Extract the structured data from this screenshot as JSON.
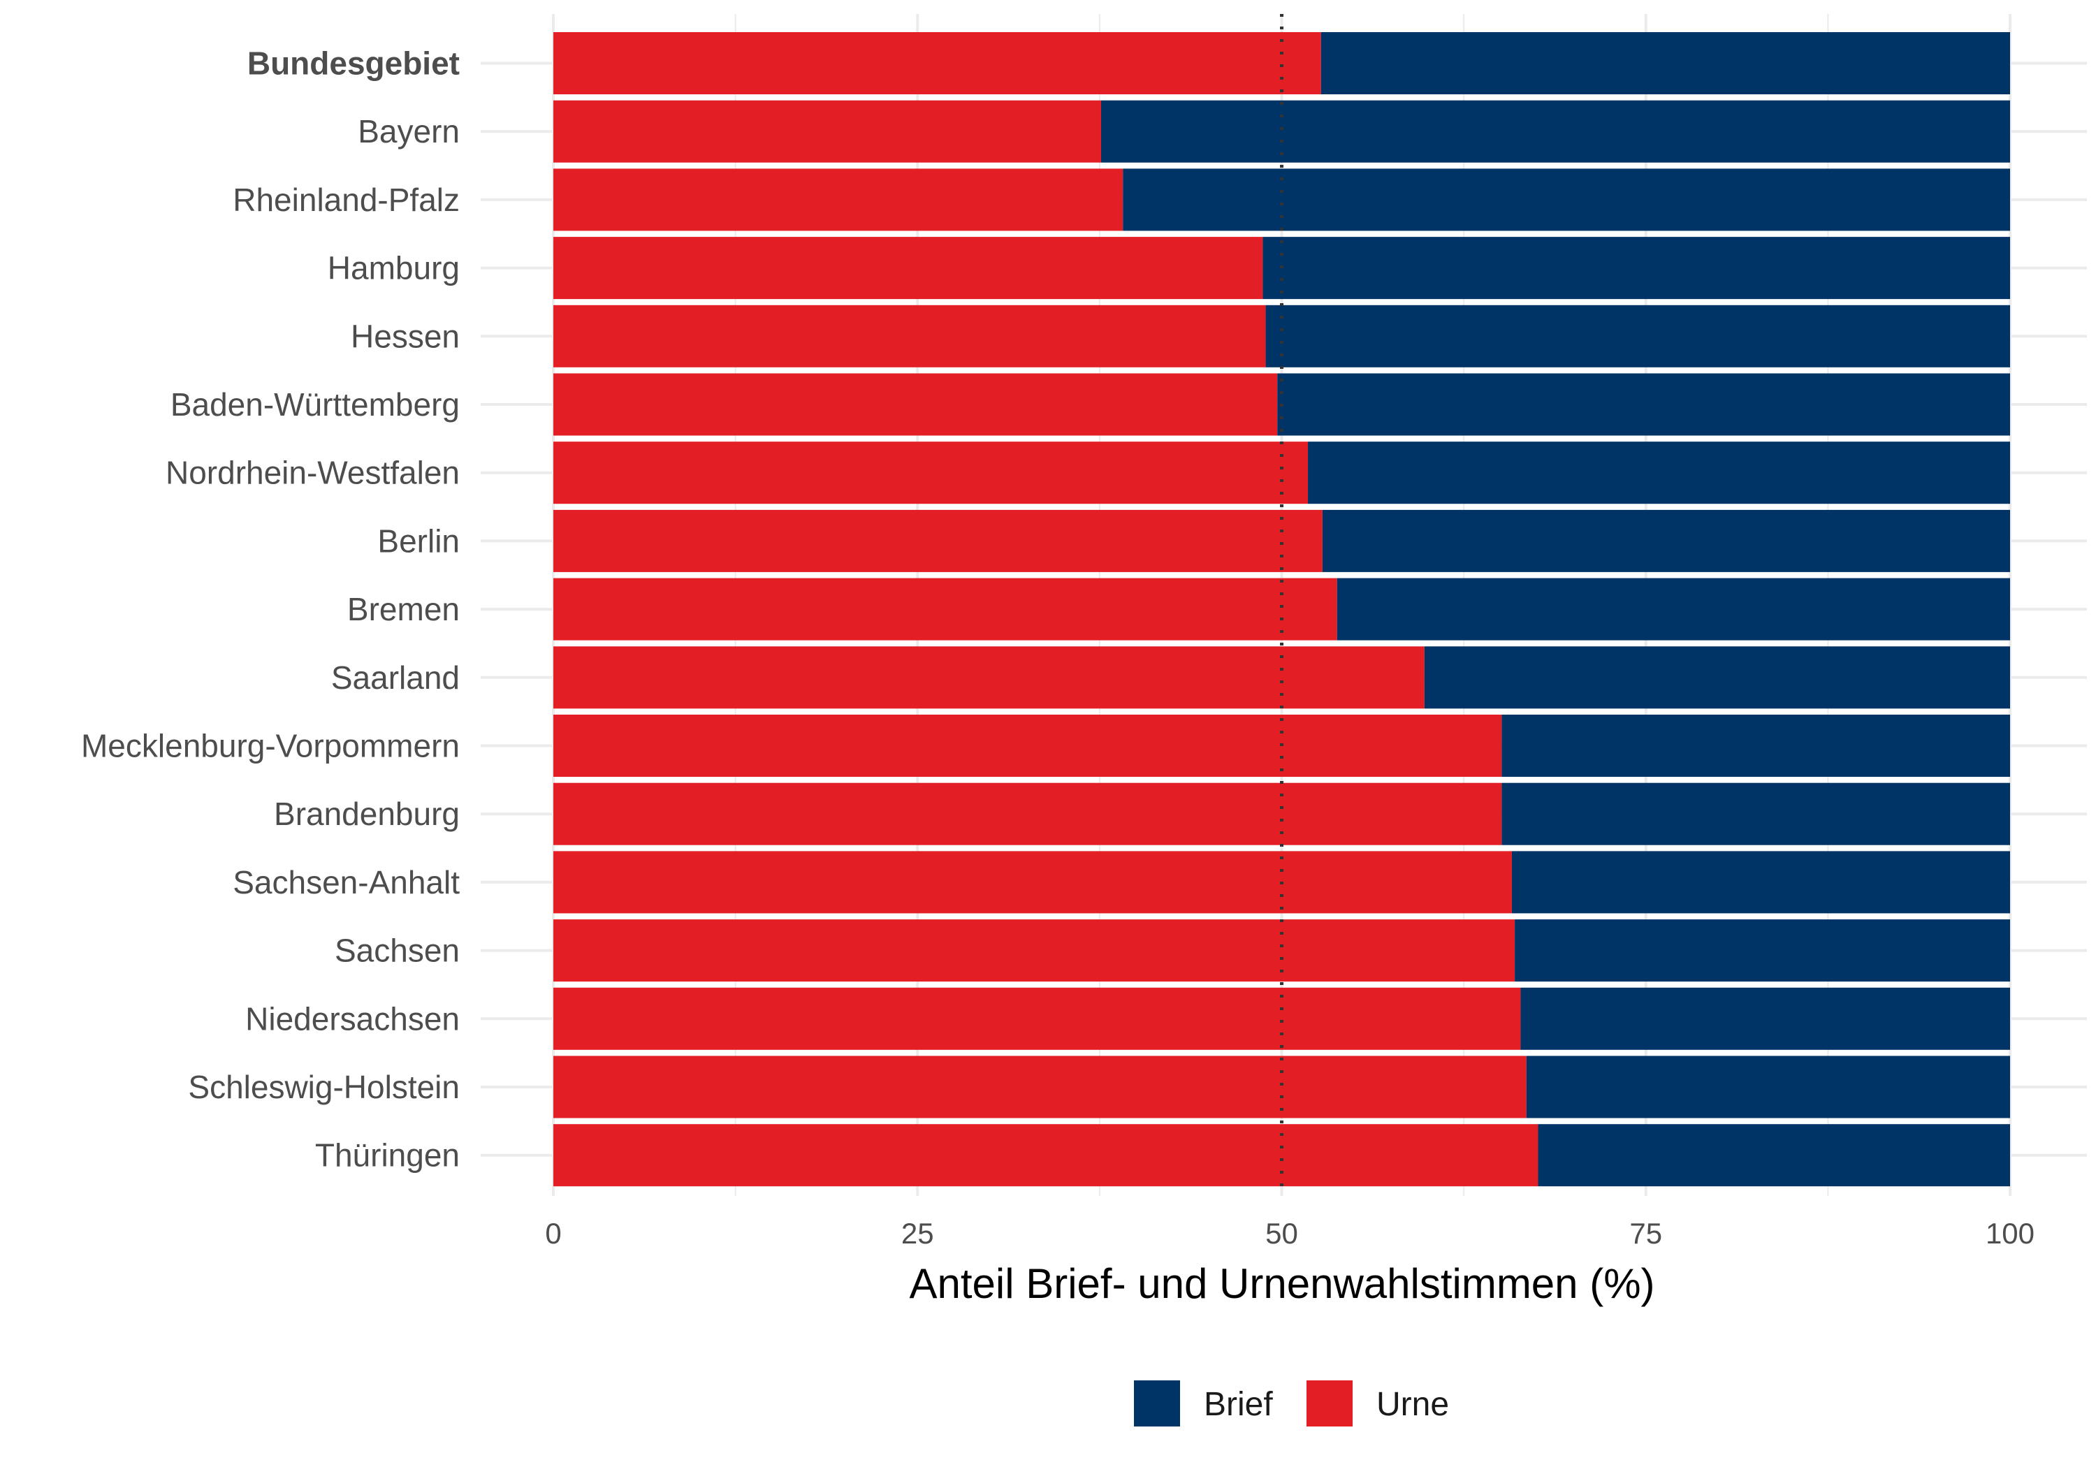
{
  "chart_data": {
    "type": "bar",
    "orientation": "horizontal",
    "stacked": true,
    "title": "",
    "xlabel": "Anteil Brief- und Urnenwahlstimmen (%)",
    "ylabel": "",
    "xlim": [
      0,
      100
    ],
    "xticks": [
      "0",
      "25",
      "50",
      "75",
      "100"
    ],
    "reference_line": {
      "x": 50,
      "style": "dotted"
    },
    "grid": true,
    "legend_position": "bottom",
    "categories": [
      "Bundesgebiet",
      "Bayern",
      "Rheinland-Pfalz",
      "Hamburg",
      "Hessen",
      "Baden-Württemberg",
      "Nordrhein-Westfalen",
      "Berlin",
      "Bremen",
      "Saarland",
      "Mecklenburg-Vorpommern",
      "Brandenburg",
      "Sachsen-Anhalt",
      "Sachsen",
      "Niedersachsen",
      "Schleswig-Holstein",
      "Thüringen"
    ],
    "bold_categories": [
      "Bundesgebiet"
    ],
    "series": [
      {
        "name": "Urne",
        "color": "#e31e24",
        "values": [
          52.7,
          37.6,
          39.1,
          48.7,
          48.9,
          49.7,
          51.8,
          52.8,
          53.8,
          59.8,
          65.1,
          65.1,
          65.8,
          66.0,
          66.4,
          66.8,
          67.6
        ]
      },
      {
        "name": "Brief",
        "color": "#003366",
        "values": [
          47.3,
          62.4,
          60.9,
          51.3,
          51.1,
          50.3,
          48.2,
          47.2,
          46.2,
          40.2,
          34.9,
          34.9,
          34.2,
          34.0,
          33.6,
          33.2,
          32.4
        ]
      }
    ],
    "legend": [
      {
        "label": "Brief",
        "color": "#003366"
      },
      {
        "label": "Urne",
        "color": "#e31e24"
      }
    ]
  }
}
